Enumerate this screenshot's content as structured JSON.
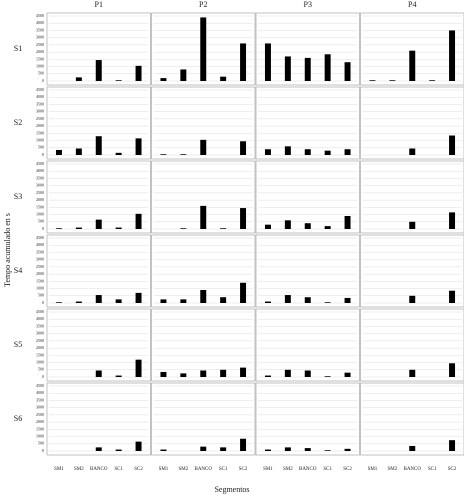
{
  "chart_data": {
    "type": "bar",
    "xlabel": "Segmentos",
    "ylabel": "Tempo acumulado en s",
    "columns": [
      "P1",
      "P2",
      "P3",
      "P4"
    ],
    "rows": [
      "S1",
      "S2",
      "S3",
      "S4",
      "S5",
      "S6"
    ],
    "categories": [
      "SM1",
      "SM2",
      "BANCO",
      "SC1",
      "SC2"
    ],
    "color": "#000000",
    "ylim": [
      0,
      4500
    ],
    "yticks": [
      0,
      500,
      1000,
      1500,
      2000,
      2500,
      3000,
      3500,
      4000,
      4500
    ],
    "grid": true,
    "values": [
      [
        [
          0,
          250,
          1450,
          50,
          1050
        ],
        [
          200,
          800,
          4400,
          300,
          2600
        ],
        [
          2600,
          1700,
          1600,
          1850,
          1300
        ],
        [
          50,
          50,
          2100,
          50,
          3500
        ]
      ],
      [
        [
          350,
          450,
          1300,
          150,
          1150
        ],
        [
          50,
          50,
          1050,
          0,
          950
        ],
        [
          400,
          600,
          400,
          300,
          400
        ],
        [
          0,
          0,
          450,
          0,
          1350
        ]
      ],
      [
        [
          50,
          100,
          650,
          100,
          1050
        ],
        [
          0,
          50,
          1600,
          50,
          1450
        ],
        [
          300,
          600,
          400,
          200,
          900
        ],
        [
          0,
          0,
          500,
          0,
          1150
        ]
      ],
      [
        [
          50,
          100,
          550,
          250,
          700
        ],
        [
          250,
          250,
          900,
          400,
          1400
        ],
        [
          100,
          550,
          400,
          50,
          350
        ],
        [
          0,
          0,
          500,
          0,
          850
        ]
      ],
      [
        [
          0,
          0,
          450,
          100,
          1200
        ],
        [
          350,
          250,
          450,
          500,
          650
        ],
        [
          100,
          500,
          450,
          50,
          300
        ],
        [
          0,
          0,
          500,
          0,
          950
        ]
      ],
      [
        [
          0,
          0,
          250,
          100,
          650
        ],
        [
          100,
          0,
          300,
          250,
          850
        ],
        [
          100,
          250,
          200,
          50,
          150
        ],
        [
          0,
          0,
          350,
          0,
          750
        ]
      ]
    ]
  }
}
